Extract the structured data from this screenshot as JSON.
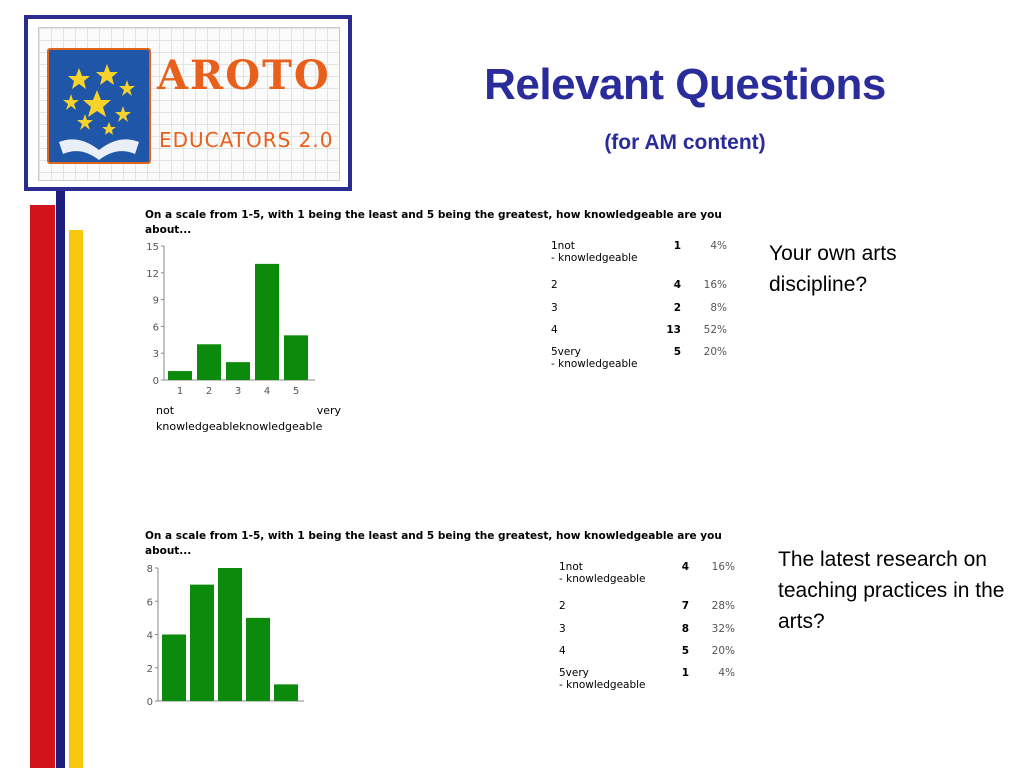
{
  "slide": {
    "title": "Relevant Questions",
    "subtitle": "(for AM content)"
  },
  "logo": {
    "word": "AROTO",
    "sub": "EDUCATORS 2.0",
    "icon": "stars-hands-emblem"
  },
  "colors": {
    "title": "#2b2c9b",
    "bar_fill": "#0b8a0b",
    "stripe_red": "#d2131a",
    "stripe_navy": "#1d1d7d",
    "stripe_yellow": "#f7c80f"
  },
  "chart_data": [
    {
      "type": "bar",
      "question": "On a scale from 1-5, with 1 being the least and 5 being the greatest, how knowledgeable are you about...",
      "categories": [
        "1",
        "2",
        "3",
        "4",
        "5"
      ],
      "values": [
        1,
        4,
        2,
        13,
        5
      ],
      "ylim": [
        0,
        15
      ],
      "yticks": [
        "15",
        "12",
        "9",
        "6",
        "3",
        "0"
      ],
      "x_end_labels": {
        "left": "not",
        "right": "very",
        "bottom": "knowledgeableknowledgeable"
      },
      "table": [
        {
          "label": "1not",
          "label2": "- knowledgeable",
          "count": "1",
          "pct": "4%"
        },
        {
          "label": "2",
          "label2": "",
          "count": "4",
          "pct": "16%"
        },
        {
          "label": "3",
          "label2": "",
          "count": "2",
          "pct": "8%"
        },
        {
          "label": "4",
          "label2": "",
          "count": "13",
          "pct": "52%"
        },
        {
          "label": "5very",
          "label2": "- knowledgeable",
          "count": "5",
          "pct": "20%"
        }
      ],
      "description": "Your own arts discipline?"
    },
    {
      "type": "bar",
      "question": "On a scale from 1-5, with 1 being the least and 5 being the greatest, how knowledgeable are you about...",
      "categories": [
        "1",
        "2",
        "3",
        "4",
        "5"
      ],
      "values": [
        4,
        7,
        8,
        5,
        1
      ],
      "ylim": [
        0,
        8
      ],
      "yticks": [
        "8",
        "6",
        "4",
        "2",
        "0"
      ],
      "table": [
        {
          "label": "1not",
          "label2": "- knowledgeable",
          "count": "4",
          "pct": "16%"
        },
        {
          "label": "2",
          "label2": "",
          "count": "7",
          "pct": "28%"
        },
        {
          "label": "3",
          "label2": "",
          "count": "8",
          "pct": "32%"
        },
        {
          "label": "4",
          "label2": "",
          "count": "5",
          "pct": "20%"
        },
        {
          "label": "5very",
          "label2": "- knowledgeable",
          "count": "1",
          "pct": "4%"
        }
      ],
      "description": "The latest research on teaching practices in the arts?"
    }
  ]
}
